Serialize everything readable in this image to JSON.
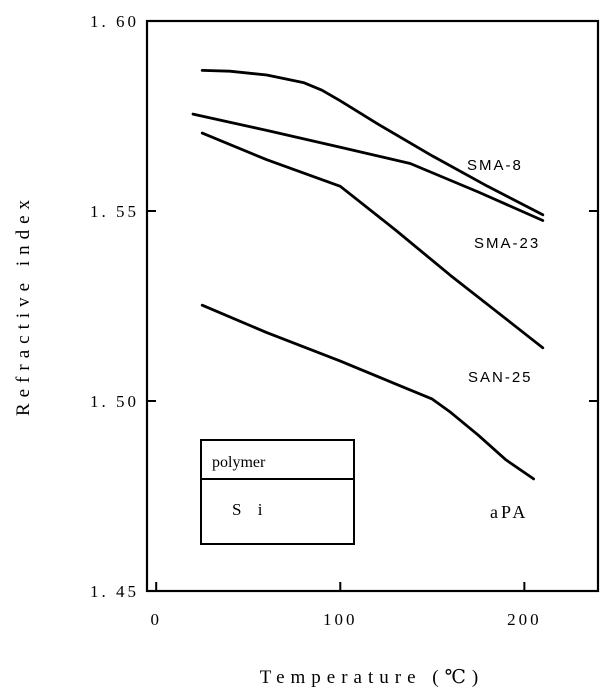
{
  "chart_data": {
    "type": "line",
    "xlabel": "Temperature (℃)",
    "ylabel": "Refractive index",
    "xlim": [
      -5,
      240
    ],
    "ylim": [
      1.45,
      1.6
    ],
    "xticks": [
      0,
      100,
      200
    ],
    "xtick_labels": [
      "0",
      "100",
      "200"
    ],
    "yticks": [
      1.45,
      1.5,
      1.55,
      1.6
    ],
    "ytick_labels": [
      "1. 45",
      "1. 50",
      "1. 55",
      "1. 60"
    ],
    "grid": false,
    "series": [
      {
        "name": "SMA-8",
        "x": [
          25,
          40,
          60,
          80,
          90,
          100,
          120,
          150,
          180,
          210
        ],
        "y": [
          1.587,
          1.5868,
          1.5858,
          1.5838,
          1.5818,
          1.579,
          1.573,
          1.5645,
          1.5565,
          1.549
        ]
      },
      {
        "name": "SMA-23",
        "x": [
          20,
          60,
          100,
          138,
          175,
          210
        ],
        "y": [
          1.5755,
          1.5712,
          1.5668,
          1.5625,
          1.555,
          1.5475
        ]
      },
      {
        "name": "SAN-25",
        "x": [
          25,
          60,
          100,
          130,
          160,
          185,
          210
        ],
        "y": [
          1.5705,
          1.5635,
          1.5565,
          1.545,
          1.533,
          1.5235,
          1.514
        ]
      },
      {
        "name": "aPA",
        "x": [
          25,
          60,
          100,
          130,
          150,
          160,
          175,
          190,
          205
        ],
        "y": [
          1.5252,
          1.518,
          1.5105,
          1.5045,
          1.5005,
          1.497,
          1.491,
          1.4845,
          1.4795
        ]
      }
    ],
    "legend": {
      "placement": "bottom-left",
      "header": "polymer",
      "body": "S i"
    }
  }
}
